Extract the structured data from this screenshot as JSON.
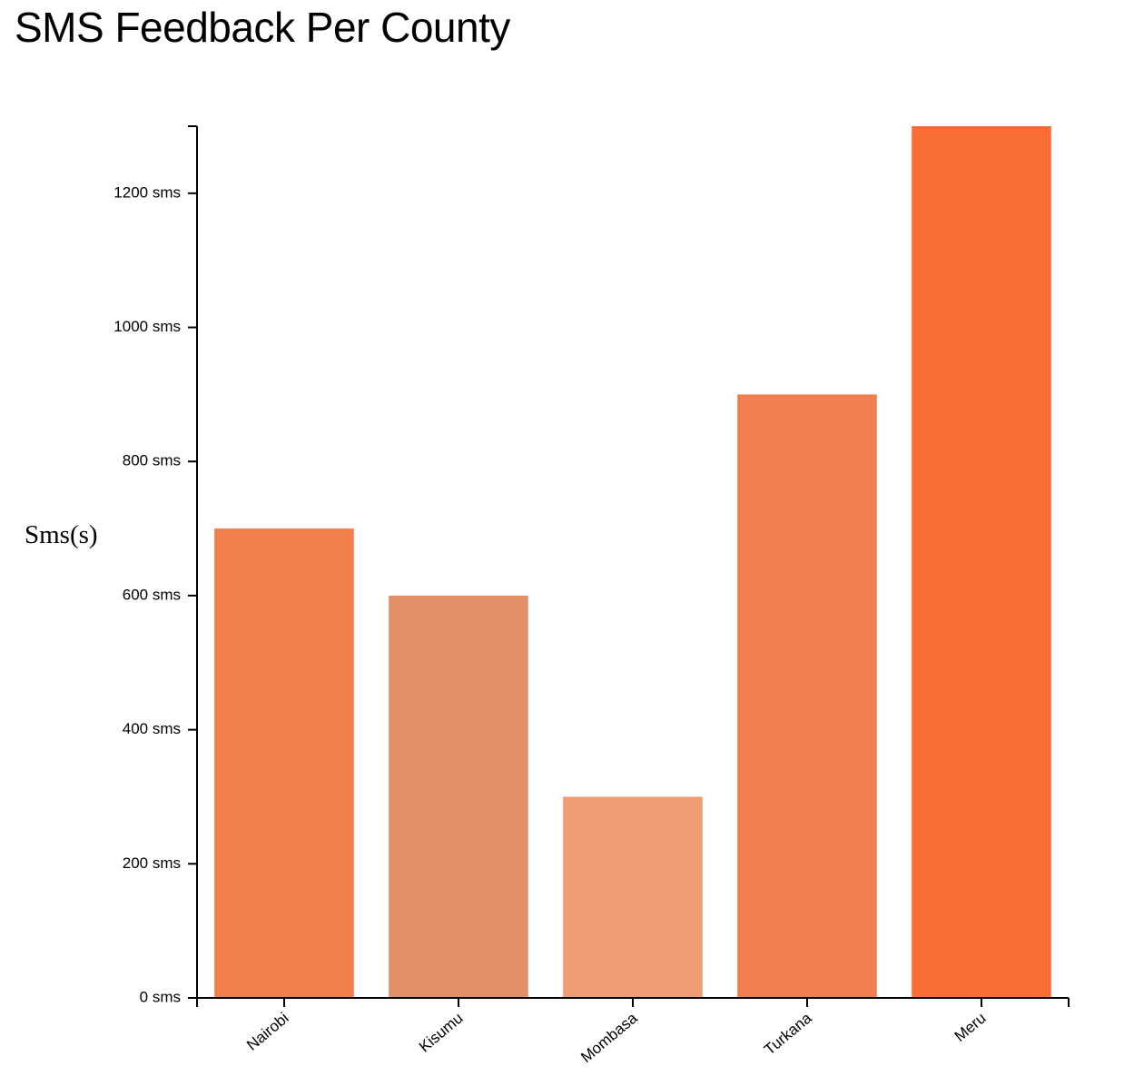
{
  "page": {
    "title": "SMS Feedback Per County"
  },
  "chart_data": {
    "type": "bar",
    "title": "SMS Feedback Per County",
    "xlabel": "",
    "ylabel": "Sms(s)",
    "categories": [
      "Nairobi",
      "Kisumu",
      "Mombasa",
      "Turkana",
      "Meru"
    ],
    "values": [
      700,
      600,
      300,
      900,
      1300
    ],
    "colors": [
      "#f07f4d",
      "#e2906a",
      "#ee9c74",
      "#ef7f4e",
      "#f86e34"
    ],
    "ylim": [
      0,
      1300
    ],
    "y_ticks": [
      0,
      200,
      400,
      600,
      800,
      1000,
      1200
    ],
    "y_tick_suffix": " sms",
    "x_tick_rotation": "-40deg",
    "grid": false,
    "legend": "none"
  }
}
